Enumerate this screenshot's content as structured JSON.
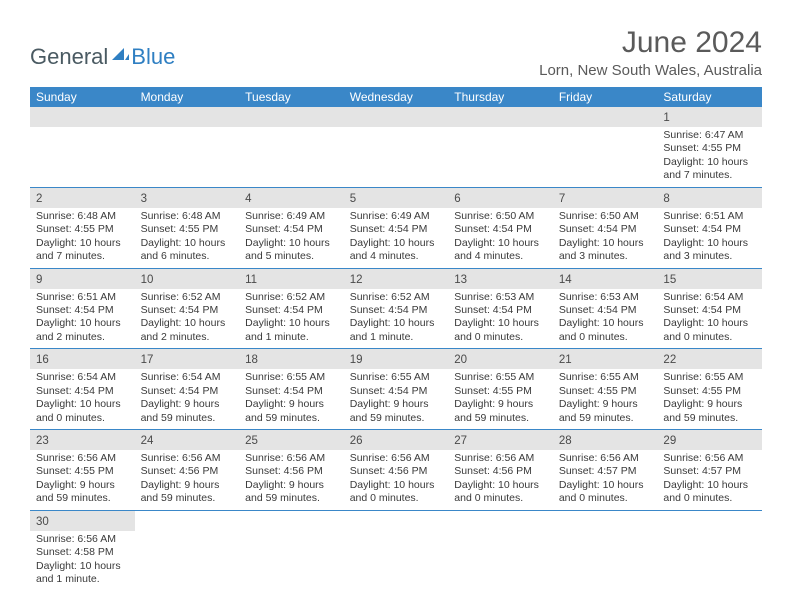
{
  "colors": {
    "header_bar": "#3a87c8",
    "day_strip": "#e4e4e4",
    "week_divider": "#3a87c8",
    "text": "#3a3a3a",
    "title_text": "#5a5a5a",
    "logo_general": "#4a5a62",
    "logo_blue": "#2f7fc2",
    "background": "#ffffff"
  },
  "typography": {
    "title_fontsize": 30,
    "location_fontsize": 15,
    "weekday_fontsize": 12,
    "daynum_fontsize": 11.5,
    "body_fontsize": 10.5
  },
  "logo": {
    "part1": "General",
    "part2": "Blue"
  },
  "title": "June 2024",
  "location": "Lorn, New South Wales, Australia",
  "weekdays": [
    "Sunday",
    "Monday",
    "Tuesday",
    "Wednesday",
    "Thursday",
    "Friday",
    "Saturday"
  ],
  "weeks": [
    [
      {
        "blank": true
      },
      {
        "blank": true
      },
      {
        "blank": true
      },
      {
        "blank": true
      },
      {
        "blank": true
      },
      {
        "blank": true
      },
      {
        "n": "1",
        "sr": "Sunrise: 6:47 AM",
        "ss": "Sunset: 4:55 PM",
        "d1": "Daylight: 10 hours",
        "d2": "and 7 minutes."
      }
    ],
    [
      {
        "n": "2",
        "sr": "Sunrise: 6:48 AM",
        "ss": "Sunset: 4:55 PM",
        "d1": "Daylight: 10 hours",
        "d2": "and 7 minutes."
      },
      {
        "n": "3",
        "sr": "Sunrise: 6:48 AM",
        "ss": "Sunset: 4:55 PM",
        "d1": "Daylight: 10 hours",
        "d2": "and 6 minutes."
      },
      {
        "n": "4",
        "sr": "Sunrise: 6:49 AM",
        "ss": "Sunset: 4:54 PM",
        "d1": "Daylight: 10 hours",
        "d2": "and 5 minutes."
      },
      {
        "n": "5",
        "sr": "Sunrise: 6:49 AM",
        "ss": "Sunset: 4:54 PM",
        "d1": "Daylight: 10 hours",
        "d2": "and 4 minutes."
      },
      {
        "n": "6",
        "sr": "Sunrise: 6:50 AM",
        "ss": "Sunset: 4:54 PM",
        "d1": "Daylight: 10 hours",
        "d2": "and 4 minutes."
      },
      {
        "n": "7",
        "sr": "Sunrise: 6:50 AM",
        "ss": "Sunset: 4:54 PM",
        "d1": "Daylight: 10 hours",
        "d2": "and 3 minutes."
      },
      {
        "n": "8",
        "sr": "Sunrise: 6:51 AM",
        "ss": "Sunset: 4:54 PM",
        "d1": "Daylight: 10 hours",
        "d2": "and 3 minutes."
      }
    ],
    [
      {
        "n": "9",
        "sr": "Sunrise: 6:51 AM",
        "ss": "Sunset: 4:54 PM",
        "d1": "Daylight: 10 hours",
        "d2": "and 2 minutes."
      },
      {
        "n": "10",
        "sr": "Sunrise: 6:52 AM",
        "ss": "Sunset: 4:54 PM",
        "d1": "Daylight: 10 hours",
        "d2": "and 2 minutes."
      },
      {
        "n": "11",
        "sr": "Sunrise: 6:52 AM",
        "ss": "Sunset: 4:54 PM",
        "d1": "Daylight: 10 hours",
        "d2": "and 1 minute."
      },
      {
        "n": "12",
        "sr": "Sunrise: 6:52 AM",
        "ss": "Sunset: 4:54 PM",
        "d1": "Daylight: 10 hours",
        "d2": "and 1 minute."
      },
      {
        "n": "13",
        "sr": "Sunrise: 6:53 AM",
        "ss": "Sunset: 4:54 PM",
        "d1": "Daylight: 10 hours",
        "d2": "and 0 minutes."
      },
      {
        "n": "14",
        "sr": "Sunrise: 6:53 AM",
        "ss": "Sunset: 4:54 PM",
        "d1": "Daylight: 10 hours",
        "d2": "and 0 minutes."
      },
      {
        "n": "15",
        "sr": "Sunrise: 6:54 AM",
        "ss": "Sunset: 4:54 PM",
        "d1": "Daylight: 10 hours",
        "d2": "and 0 minutes."
      }
    ],
    [
      {
        "n": "16",
        "sr": "Sunrise: 6:54 AM",
        "ss": "Sunset: 4:54 PM",
        "d1": "Daylight: 10 hours",
        "d2": "and 0 minutes."
      },
      {
        "n": "17",
        "sr": "Sunrise: 6:54 AM",
        "ss": "Sunset: 4:54 PM",
        "d1": "Daylight: 9 hours",
        "d2": "and 59 minutes."
      },
      {
        "n": "18",
        "sr": "Sunrise: 6:55 AM",
        "ss": "Sunset: 4:54 PM",
        "d1": "Daylight: 9 hours",
        "d2": "and 59 minutes."
      },
      {
        "n": "19",
        "sr": "Sunrise: 6:55 AM",
        "ss": "Sunset: 4:54 PM",
        "d1": "Daylight: 9 hours",
        "d2": "and 59 minutes."
      },
      {
        "n": "20",
        "sr": "Sunrise: 6:55 AM",
        "ss": "Sunset: 4:55 PM",
        "d1": "Daylight: 9 hours",
        "d2": "and 59 minutes."
      },
      {
        "n": "21",
        "sr": "Sunrise: 6:55 AM",
        "ss": "Sunset: 4:55 PM",
        "d1": "Daylight: 9 hours",
        "d2": "and 59 minutes."
      },
      {
        "n": "22",
        "sr": "Sunrise: 6:55 AM",
        "ss": "Sunset: 4:55 PM",
        "d1": "Daylight: 9 hours",
        "d2": "and 59 minutes."
      }
    ],
    [
      {
        "n": "23",
        "sr": "Sunrise: 6:56 AM",
        "ss": "Sunset: 4:55 PM",
        "d1": "Daylight: 9 hours",
        "d2": "and 59 minutes."
      },
      {
        "n": "24",
        "sr": "Sunrise: 6:56 AM",
        "ss": "Sunset: 4:56 PM",
        "d1": "Daylight: 9 hours",
        "d2": "and 59 minutes."
      },
      {
        "n": "25",
        "sr": "Sunrise: 6:56 AM",
        "ss": "Sunset: 4:56 PM",
        "d1": "Daylight: 9 hours",
        "d2": "and 59 minutes."
      },
      {
        "n": "26",
        "sr": "Sunrise: 6:56 AM",
        "ss": "Sunset: 4:56 PM",
        "d1": "Daylight: 10 hours",
        "d2": "and 0 minutes."
      },
      {
        "n": "27",
        "sr": "Sunrise: 6:56 AM",
        "ss": "Sunset: 4:56 PM",
        "d1": "Daylight: 10 hours",
        "d2": "and 0 minutes."
      },
      {
        "n": "28",
        "sr": "Sunrise: 6:56 AM",
        "ss": "Sunset: 4:57 PM",
        "d1": "Daylight: 10 hours",
        "d2": "and 0 minutes."
      },
      {
        "n": "29",
        "sr": "Sunrise: 6:56 AM",
        "ss": "Sunset: 4:57 PM",
        "d1": "Daylight: 10 hours",
        "d2": "and 0 minutes."
      }
    ],
    [
      {
        "n": "30",
        "sr": "Sunrise: 6:56 AM",
        "ss": "Sunset: 4:58 PM",
        "d1": "Daylight: 10 hours",
        "d2": "and 1 minute."
      },
      {
        "blank": true,
        "nobar": true
      },
      {
        "blank": true,
        "nobar": true
      },
      {
        "blank": true,
        "nobar": true
      },
      {
        "blank": true,
        "nobar": true
      },
      {
        "blank": true,
        "nobar": true
      },
      {
        "blank": true,
        "nobar": true
      }
    ]
  ]
}
